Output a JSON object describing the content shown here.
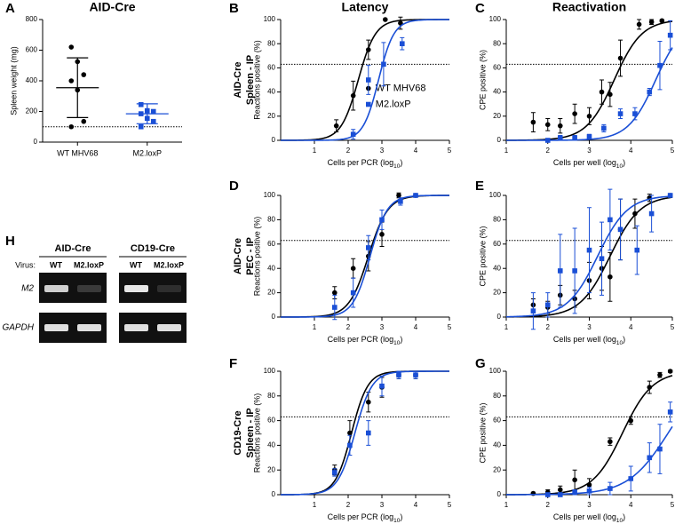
{
  "chart_data": [
    {
      "type": "dotplot",
      "panel": "A",
      "title": "AID-Cre",
      "ylabel": "Spleen weight (mg)",
      "categories": [
        "WT MHV68",
        "M2.loxP"
      ],
      "ylim": [
        0,
        800
      ],
      "yticks": [
        0,
        200,
        400,
        600,
        800
      ],
      "threshold": 100,
      "groups": [
        {
          "color": "#000000",
          "marker": "circle",
          "values": [
            620,
            525,
            440,
            400,
            340,
            135,
            100
          ],
          "mean": 355,
          "sd": 195
        },
        {
          "color": "#1a4fd6",
          "marker": "square",
          "values": [
            245,
            205,
            200,
            185,
            155,
            135,
            100
          ],
          "mean": 185,
          "sd": 65
        }
      ]
    },
    {
      "type": "doseresponse",
      "panel": "B",
      "title": "Latency",
      "row_label": [
        "AID-Cre",
        "Spleen - IP"
      ],
      "xlabel": "Cells per PCR (log",
      "xlabel_sub": "10",
      "xlabel_end": ")",
      "ylabel": "Reactions positive (%)",
      "xlim": [
        0,
        5
      ],
      "xticks": [
        1,
        2,
        3,
        4,
        5
      ],
      "ylim": [
        0,
        100
      ],
      "yticks": [
        0,
        20,
        40,
        60,
        80,
        100
      ],
      "threshold": 63,
      "legend": "middle-right",
      "series": [
        {
          "name": "WT MHV68",
          "color": "#000000",
          "marker": "circle",
          "x": [
            1.65,
            2.15,
            2.6,
            3.1,
            3.55
          ],
          "values": [
            12,
            37,
            75,
            100,
            97
          ],
          "errors": [
            5,
            12,
            8,
            0,
            5
          ],
          "fit": {
            "bottom": 0,
            "top": 100,
            "x50": 2.3,
            "hill": 1.7
          }
        },
        {
          "name": "M2.loxP",
          "color": "#1a4fd6",
          "marker": "square",
          "x": [
            2.15,
            2.6,
            3.05,
            3.6
          ],
          "values": [
            5,
            50,
            63,
            80
          ],
          "errors": [
            4,
            12,
            18,
            5
          ],
          "fit": {
            "bottom": 0,
            "top": 100,
            "x50": 2.9,
            "hill": 1.9
          }
        }
      ]
    },
    {
      "type": "doseresponse",
      "panel": "C",
      "title": "Reactivation",
      "xlabel": "Cells per well (log",
      "xlabel_sub": "10",
      "xlabel_end": ")",
      "ylabel": "CPE positive (%)",
      "xlim": [
        1,
        5
      ],
      "xticks": [
        1,
        2,
        3,
        4,
        5
      ],
      "ylim": [
        0,
        100
      ],
      "yticks": [
        0,
        20,
        40,
        60,
        80,
        100
      ],
      "threshold": 63,
      "series": [
        {
          "color": "#000000",
          "marker": "circle",
          "x": [
            1.65,
            2.0,
            2.3,
            2.65,
            3.0,
            3.3,
            3.5,
            3.75,
            4.2,
            4.5,
            4.75
          ],
          "values": [
            15,
            13,
            12,
            22,
            20,
            40,
            38,
            68,
            96,
            98,
            99
          ],
          "errors": [
            8,
            5,
            6,
            8,
            7,
            10,
            10,
            15,
            4,
            2,
            1
          ],
          "fit": {
            "bottom": 0,
            "top": 100,
            "x50": 3.6,
            "hill": 1.3
          }
        },
        {
          "color": "#1a4fd6",
          "marker": "square",
          "x": [
            2.0,
            2.3,
            2.65,
            3.0,
            3.35,
            3.75,
            4.1,
            4.45,
            4.7,
            4.95
          ],
          "values": [
            0,
            2,
            2,
            3,
            10,
            22,
            22,
            40,
            62,
            87
          ],
          "errors": [
            1,
            2,
            2,
            2,
            3,
            4,
            5,
            3,
            20,
            12
          ],
          "fit": {
            "bottom": 0,
            "top": 100,
            "x50": 4.6,
            "hill": 1.3
          }
        }
      ]
    },
    {
      "type": "doseresponse",
      "panel": "D",
      "row_label": [
        "AID-Cre",
        "PEC - IP"
      ],
      "xlabel": "Cells per PCR (log",
      "xlabel_sub": "10",
      "xlabel_end": ")",
      "ylabel": "Reactions positive (%)",
      "xlim": [
        0,
        5
      ],
      "xticks": [
        1,
        2,
        3,
        4,
        5
      ],
      "ylim": [
        0,
        100
      ],
      "yticks": [
        0,
        20,
        40,
        60,
        80,
        100
      ],
      "threshold": 63,
      "series": [
        {
          "color": "#000000",
          "marker": "circle",
          "x": [
            1.6,
            2.15,
            2.6,
            3.0,
            3.5,
            4.0
          ],
          "values": [
            20,
            40,
            50,
            68,
            100,
            100
          ],
          "errors": [
            5,
            8,
            12,
            10,
            2,
            1
          ],
          "fit": {
            "bottom": 0,
            "top": 100,
            "x50": 2.6,
            "hill": 1.5
          }
        },
        {
          "color": "#1a4fd6",
          "marker": "square",
          "x": [
            1.6,
            2.15,
            2.6,
            3.0,
            3.55,
            4.0
          ],
          "values": [
            8,
            20,
            57,
            80,
            95,
            100
          ],
          "errors": [
            10,
            12,
            10,
            8,
            3,
            1
          ],
          "fit": {
            "bottom": 0,
            "top": 100,
            "x50": 2.65,
            "hill": 1.7
          }
        }
      ]
    },
    {
      "type": "doseresponse",
      "panel": "E",
      "xlabel": "Cells per well (log",
      "xlabel_sub": "10",
      "xlabel_end": ")",
      "ylabel": "CPE positive (%)",
      "xlim": [
        1,
        5
      ],
      "xticks": [
        1,
        2,
        3,
        4,
        5
      ],
      "ylim": [
        0,
        100
      ],
      "yticks": [
        0,
        20,
        40,
        60,
        80,
        100
      ],
      "threshold": 63,
      "series": [
        {
          "color": "#000000",
          "marker": "circle",
          "x": [
            1.65,
            2.0,
            2.3,
            2.65,
            3.0,
            3.3,
            3.5,
            3.75,
            4.1,
            4.45,
            4.95
          ],
          "values": [
            10,
            8,
            18,
            15,
            30,
            40,
            33,
            72,
            85,
            98,
            100
          ],
          "errors": [
            5,
            5,
            8,
            7,
            15,
            18,
            20,
            25,
            12,
            3,
            1
          ],
          "fit": {
            "bottom": 0,
            "top": 100,
            "x50": 3.5,
            "hill": 1.2
          }
        },
        {
          "color": "#1a4fd6",
          "marker": "square",
          "x": [
            1.65,
            2.0,
            2.3,
            2.65,
            3.0,
            3.3,
            3.5,
            3.75,
            4.15,
            4.5,
            4.95
          ],
          "values": [
            5,
            10,
            38,
            38,
            55,
            48,
            80,
            72,
            55,
            85,
            100
          ],
          "errors": [
            15,
            10,
            30,
            35,
            35,
            30,
            25,
            25,
            20,
            15,
            1
          ],
          "fit": {
            "bottom": 0,
            "top": 100,
            "x50": 3.2,
            "hill": 1.2
          }
        }
      ]
    },
    {
      "type": "doseresponse",
      "panel": "F",
      "row_label": [
        "CD19-Cre",
        "Spleen - IP"
      ],
      "xlabel": "Cells per PCR (log",
      "xlabel_sub": "10",
      "xlabel_end": ")",
      "ylabel": "Reactions positive (%)",
      "xlim": [
        0,
        5
      ],
      "xticks": [
        1,
        2,
        3,
        4,
        5
      ],
      "ylim": [
        0,
        100
      ],
      "yticks": [
        0,
        20,
        40,
        60,
        80,
        100
      ],
      "threshold": 63,
      "series": [
        {
          "color": "#000000",
          "marker": "circle",
          "x": [
            1.6,
            2.05,
            2.6,
            3.0,
            3.5,
            4.0
          ],
          "values": [
            20,
            50,
            75,
            87,
            97,
            97
          ],
          "errors": [
            4,
            10,
            8,
            8,
            3,
            3
          ],
          "fit": {
            "bottom": 0,
            "top": 100,
            "x50": 2.1,
            "hill": 1.8
          }
        },
        {
          "color": "#1a4fd6",
          "marker": "square",
          "x": [
            1.6,
            2.05,
            2.6,
            3.0,
            3.5,
            4.0
          ],
          "values": [
            18,
            40,
            50,
            88,
            97,
            97
          ],
          "errors": [
            3,
            8,
            10,
            8,
            3,
            3
          ],
          "fit": {
            "bottom": 0,
            "top": 100,
            "x50": 2.2,
            "hill": 1.7
          }
        }
      ]
    },
    {
      "type": "doseresponse",
      "panel": "G",
      "xlabel": "Cells per well (log",
      "xlabel_sub": "10",
      "xlabel_end": ")",
      "ylabel": "CPE positive (%)",
      "xlim": [
        1,
        5
      ],
      "xticks": [
        1,
        2,
        3,
        4,
        5
      ],
      "ylim": [
        0,
        100
      ],
      "yticks": [
        0,
        20,
        40,
        60,
        80,
        100
      ],
      "threshold": 63,
      "series": [
        {
          "color": "#000000",
          "marker": "circle",
          "x": [
            1.65,
            2.0,
            2.3,
            2.65,
            3.0,
            3.5,
            4.0,
            4.45,
            4.7,
            4.95
          ],
          "values": [
            1,
            2,
            4,
            12,
            8,
            43,
            60,
            87,
            97,
            100
          ],
          "errors": [
            1,
            2,
            3,
            8,
            5,
            3,
            3,
            5,
            2,
            1
          ],
          "fit": {
            "bottom": 0,
            "top": 100,
            "x50": 3.8,
            "hill": 1.2
          }
        },
        {
          "color": "#1a4fd6",
          "marker": "square",
          "x": [
            2.0,
            2.3,
            2.65,
            3.0,
            3.5,
            4.0,
            4.45,
            4.7,
            4.95
          ],
          "values": [
            0,
            0,
            2,
            3,
            5,
            13,
            30,
            37,
            67
          ],
          "errors": [
            1,
            1,
            2,
            3,
            5,
            10,
            12,
            20,
            8
          ],
          "fit": {
            "bottom": 0,
            "top": 100,
            "x50": 4.9,
            "hill": 0.9
          }
        }
      ]
    }
  ],
  "gel": {
    "panel": "H",
    "groups": [
      "AID-Cre",
      "CD19-Cre"
    ],
    "virus_label": "Virus:",
    "lanes": [
      "WT",
      "M2.loxP",
      "WT",
      "M2.loxP"
    ],
    "bands": [
      "M2",
      "GAPDH"
    ]
  }
}
